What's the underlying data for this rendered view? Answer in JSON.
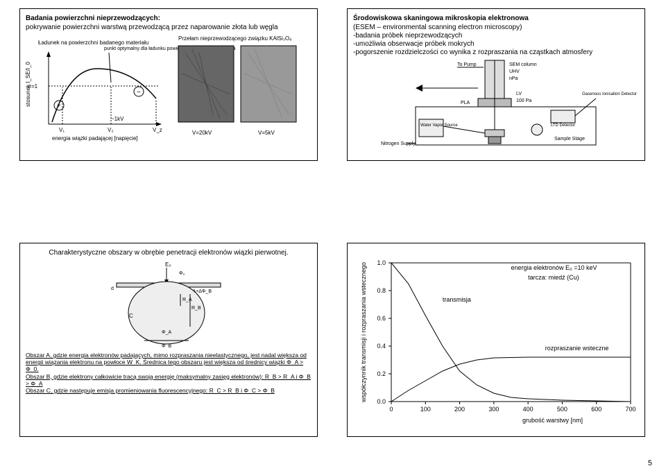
{
  "pageNumber": "5",
  "slide1": {
    "title": "Badania powierzchni nieprzewodzących:",
    "subtitle": "pokrywanie powierzchni warstwą przewodzącą przez naparowanie złota lub węgla",
    "label_charge": "Ładunek na powierzchni badanego materiału",
    "label_opt": "punkt optymalny dla ładunku powierzchni nie dla pracy działa",
    "label_przelam": "Przełam nieprzewodzącego związku KAlSi₃O₈",
    "ylabel": "stosunek I_SE/I_0",
    "xlabel": "energia wiązki padającej [napięcie]",
    "sigma1": "σ=1",
    "v1": "V₁",
    "v2": "V₂",
    "vz": "V_z",
    "kv1": "~1kV",
    "v20": "V=20kV",
    "v5": "V=5kV"
  },
  "slide2": {
    "title": "Środowiskowa skaningowa mikroskopia elektronowa",
    "sub1": "(ESEM – environmental scanning electron microscopy)",
    "sub2": "-badania próbek nieprzewodzących",
    "sub3": "-umożliwia obserwacje próbek mokrych",
    "sub4": "-pogorszenie rozdzielczości co wynika z rozpraszania na cząstkach atmosfery",
    "labels": {
      "topump": "To Pump",
      "sem": "SEM column",
      "uhv": "UHV",
      "mpa": "nPa",
      "lv": "LV",
      "pa100": "100 Pa",
      "pla": "PLA",
      "gas": "Gasenous Ionisation Detector",
      "ltd": "LTD Detector",
      "water": "Water Vapor Source",
      "nitrogen": "Nitrogen Supply",
      "sample": "Sample Stage"
    }
  },
  "slide3": {
    "title": "Charakterystyczne obszary w obrębie penetracji elektronów wiązki pierwotnej.",
    "E0": "E₀",
    "phi0": "Φ₀",
    "d": "d",
    "phiA": "Φ_A+ΔΦ_B",
    "A": "A",
    "B": "B",
    "C": "C",
    "RA": "R_A",
    "RB": "R_B",
    "phiB": "Φ_B",
    "phiAlabel": "Φ_A",
    "textA": "Obszar A, gdzie energia elektronów padających, mimo rozpraszania nieelastycznego, jest nadal większa od energii wiązania elektronu na powłoce W_K. Średnica tego obszaru jest większa od średnicy wiązki Φ_A > Φ_0.",
    "textB": "Obszar B, gdzie elektrony całkowicie tracą swoją energię (maksymalny zasięg elektronów): R_B > R_A i Φ_B > Φ_A",
    "textC": "Obszar C, gdzie następuje emisja promieniowania fluorescencyjnego: R_C > R_B i Φ_C > Φ_B"
  },
  "slide4": {
    "ylabel": "współczynnik transmisji i rozpraszania wstecznego",
    "xlabel_unit": "grubość warstwy [nm]",
    "legend_energy": "energia elektronów E₀ =10 keV",
    "legend_target": "tarcza: miedź (Cu)",
    "label_trans": "transmisja",
    "label_back": "rozpraszanie wsteczne",
    "yticks": [
      "0.0",
      "0.2",
      "0.4",
      "0.6",
      "0.8",
      "1.0"
    ],
    "xticks": [
      "0",
      "100",
      "200",
      "300",
      "400",
      "500",
      "600",
      "700"
    ],
    "xlim": [
      0,
      700
    ],
    "ylim": [
      0,
      1.0
    ],
    "transmission_points": [
      [
        0,
        1.0
      ],
      [
        50,
        0.85
      ],
      [
        100,
        0.62
      ],
      [
        150,
        0.4
      ],
      [
        200,
        0.22
      ],
      [
        250,
        0.12
      ],
      [
        300,
        0.06
      ],
      [
        350,
        0.03
      ],
      [
        400,
        0.02
      ],
      [
        500,
        0.01
      ],
      [
        600,
        0.005
      ],
      [
        700,
        0.0
      ]
    ],
    "backscatter_points": [
      [
        0,
        0.0
      ],
      [
        50,
        0.08
      ],
      [
        100,
        0.15
      ],
      [
        150,
        0.22
      ],
      [
        200,
        0.27
      ],
      [
        250,
        0.3
      ],
      [
        300,
        0.315
      ],
      [
        400,
        0.32
      ],
      [
        500,
        0.32
      ],
      [
        600,
        0.32
      ],
      [
        700,
        0.32
      ]
    ],
    "line_color": "#000000",
    "line_width": 1,
    "background": "#ffffff"
  }
}
